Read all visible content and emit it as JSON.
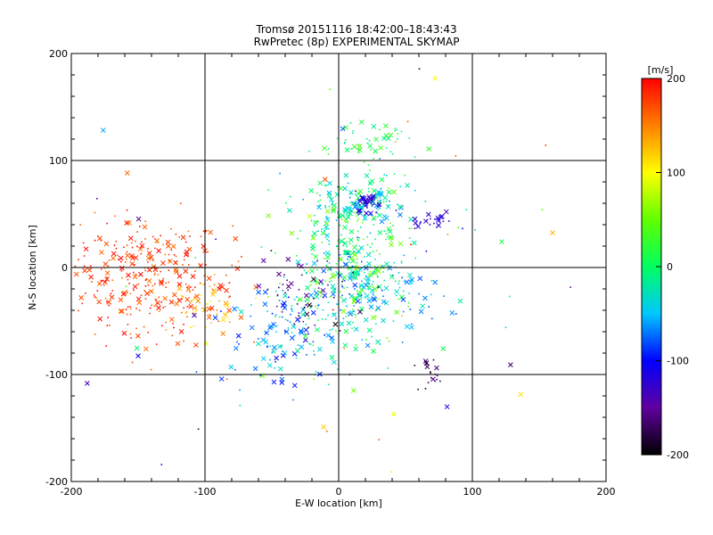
{
  "chart_data": {
    "type": "scatter",
    "title": "Tromsø 20151116 18:42:00–18:43:43",
    "subtitle": "RwPretec (8p) EXPERIMENTAL SKYMAP",
    "xlabel": "E-W location [km]",
    "ylabel": "N-S location [km]",
    "xlim": [
      -200,
      200
    ],
    "ylim": [
      -200,
      200
    ],
    "x_ticks": [
      "-200",
      "-100",
      "0",
      "100",
      "200"
    ],
    "y_ticks": [
      "-200",
      "-100",
      "0",
      "100",
      "200"
    ],
    "grid": true,
    "marker_types": [
      "dot",
      "x"
    ],
    "colorbar": {
      "label": "[m/s]",
      "range": [
        -200,
        200
      ],
      "ticks": [
        "200",
        "100",
        "0",
        "-100",
        "-200"
      ],
      "colormap": [
        "#000000",
        "#6000a0",
        "#0000ff",
        "#00c8ff",
        "#00ff60",
        "#60ff00",
        "#ffff00",
        "#ff8000",
        "#ff0000"
      ]
    },
    "clusters": [
      {
        "x": -145,
        "y": -10,
        "sx": 30,
        "sy": 30,
        "n": 320,
        "v": [
          150,
          200
        ]
      },
      {
        "x": -100,
        "y": -40,
        "sx": 12,
        "sy": 14,
        "n": 60,
        "v": [
          100,
          180
        ]
      },
      {
        "x": 5,
        "y": 5,
        "sx": 22,
        "sy": 40,
        "n": 320,
        "v": [
          -40,
          60
        ]
      },
      {
        "x": 20,
        "y": -20,
        "sx": 25,
        "sy": 20,
        "n": 160,
        "v": [
          -90,
          -20
        ]
      },
      {
        "x": 15,
        "y": 60,
        "sx": 20,
        "sy": 10,
        "n": 120,
        "v": [
          -70,
          10
        ]
      },
      {
        "x": 20,
        "y": 60,
        "sx": 5,
        "sy": 4,
        "n": 40,
        "v": [
          -140,
          -110
        ]
      },
      {
        "x": 15,
        "y": 115,
        "sx": 20,
        "sy": 10,
        "n": 50,
        "v": [
          -20,
          40
        ]
      },
      {
        "x": -40,
        "y": -60,
        "sx": 20,
        "sy": 25,
        "n": 120,
        "v": [
          -110,
          -20
        ]
      },
      {
        "x": 70,
        "y": 45,
        "sx": 8,
        "sy": 4,
        "n": 25,
        "v": [
          -140,
          -110
        ]
      },
      {
        "x": 70,
        "y": -100,
        "sx": 8,
        "sy": 8,
        "n": 20,
        "v": [
          -200,
          -150
        ]
      },
      {
        "x": -25,
        "y": -25,
        "sx": 15,
        "sy": 20,
        "n": 50,
        "v": [
          -200,
          -130
        ]
      },
      {
        "x": 0,
        "y": 0,
        "sx": 100,
        "sy": 100,
        "n": 80,
        "v": [
          -200,
          200
        ]
      }
    ]
  }
}
